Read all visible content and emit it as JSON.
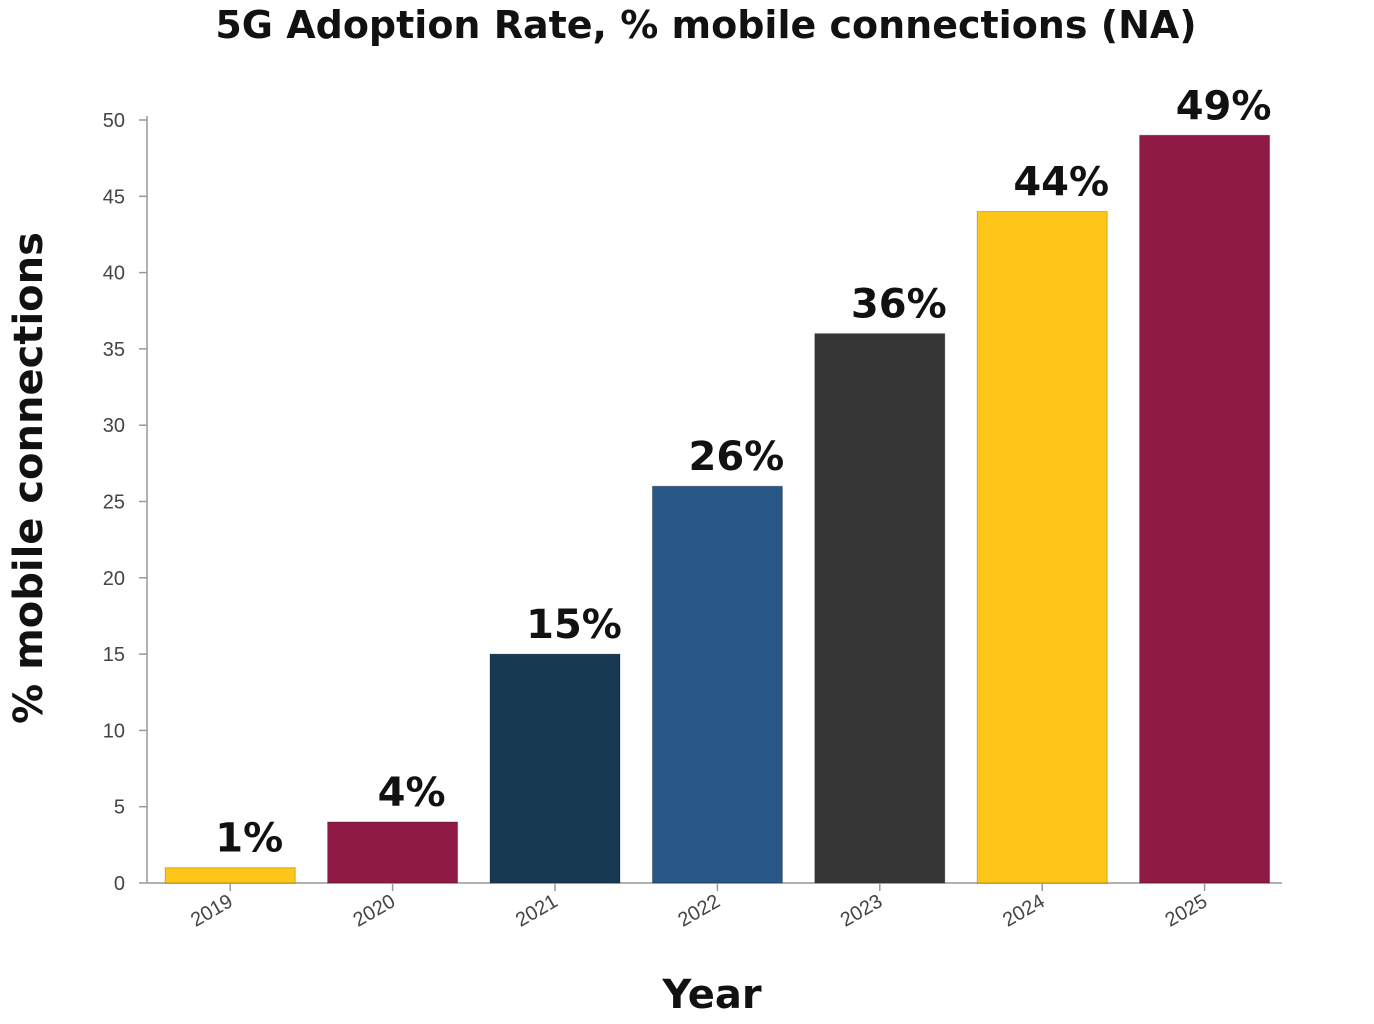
{
  "chart_data": {
    "type": "bar",
    "title": "5G Adoption Rate, % mobile connections (NA)",
    "xlabel": "Year",
    "ylabel": "% mobile connections",
    "categories": [
      "2019",
      "2020",
      "2021",
      "2022",
      "2023",
      "2024",
      "2025"
    ],
    "values": [
      1,
      4,
      15,
      26,
      36,
      44,
      49
    ],
    "data_labels": [
      "1%",
      "4%",
      "15%",
      "26%",
      "36%",
      "44%",
      "49%"
    ],
    "bar_colors": [
      "#FFC61A",
      "#8E1A45",
      "#173A52",
      "#285786",
      "#363636",
      "#FFC61A",
      "#8E1A45"
    ],
    "ylim": [
      0,
      50
    ],
    "yticks": [
      0,
      5,
      10,
      15,
      20,
      25,
      30,
      35,
      40,
      45,
      50
    ],
    "grid": false,
    "legend": "none"
  }
}
